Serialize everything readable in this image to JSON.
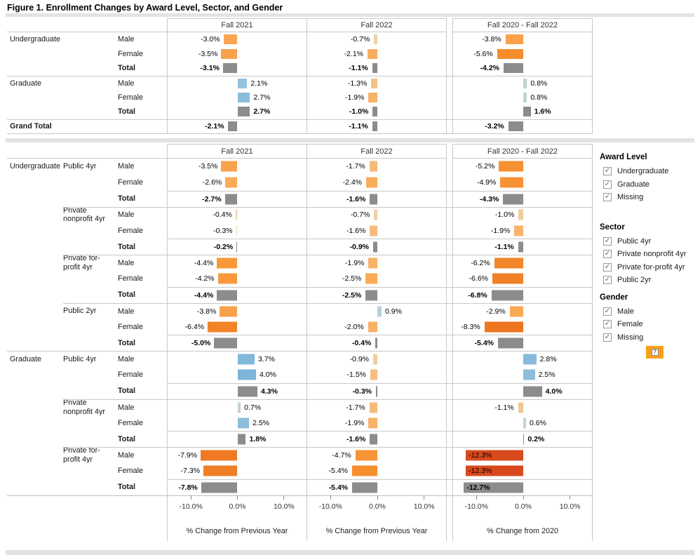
{
  "title": "Figure 1. Enrollment Changes by Award Level, Sector, and Gender",
  "palette": {
    "total_bar": "#8C8C8C",
    "negative_extreme": "#D8491D",
    "negative": "#F28E2B",
    "negative_light": "#EBD2A7",
    "positive": "#7CB5D8",
    "positive_light": "#C0D3D4",
    "separator_band": "#E3E3E3",
    "grid_border": "#C8C8C8",
    "filter_badge": "#F9A01B"
  },
  "chart_data": {
    "type": "bar",
    "orientation": "horizontal",
    "x_range": [
      -15,
      15
    ],
    "x_ticks": [
      {
        "value": -10,
        "label": "-10.0%"
      },
      {
        "value": 0,
        "label": "0.0%"
      },
      {
        "value": 10,
        "label": "10.0%"
      }
    ],
    "columns": [
      "Fall 2021",
      "Fall 2022",
      "Fall 2020 - Fall 2022"
    ],
    "x_axis_titles": [
      "% Change from Previous Year",
      "% Change from Previous Year",
      "% Change from 2020"
    ],
    "summary_rows": [
      {
        "level": "Undergraduate",
        "gender": "Male",
        "total": false,
        "cells": [
          {
            "v": -3.0,
            "label": "-3.0%",
            "color": "#F9A551"
          },
          {
            "v": -0.7,
            "label": "-0.7%",
            "color": "#EBD2A7"
          },
          {
            "v": -3.8,
            "label": "-3.8%",
            "color": "#F9A04A"
          }
        ]
      },
      {
        "level": "",
        "gender": "Female",
        "total": false,
        "cells": [
          {
            "v": -3.5,
            "label": "-3.5%",
            "color": "#F9A14C"
          },
          {
            "v": -2.1,
            "label": "-2.1%",
            "color": "#F8AE60"
          },
          {
            "v": -5.6,
            "label": "-5.6%",
            "color": "#F68D2B"
          }
        ]
      },
      {
        "level": "",
        "gender": "Total",
        "total": true,
        "cells": [
          {
            "v": -3.1,
            "label": "-3.1%",
            "color": "#8C8C8C"
          },
          {
            "v": -1.1,
            "label": "-1.1%",
            "color": "#8C8C8C"
          },
          {
            "v": -4.2,
            "label": "-4.2%",
            "color": "#8C8C8C"
          }
        ]
      },
      {
        "level": "Graduate",
        "gender": "Male",
        "total": false,
        "cells": [
          {
            "v": 2.1,
            "label": "2.1%",
            "color": "#95C2DD"
          },
          {
            "v": -1.3,
            "label": "-1.3%",
            "color": "#F2C289"
          },
          {
            "v": 0.8,
            "label": "0.8%",
            "color": "#C0D3D4"
          }
        ]
      },
      {
        "level": "",
        "gender": "Female",
        "total": false,
        "cells": [
          {
            "v": 2.7,
            "label": "2.7%",
            "color": "#8BBDDB"
          },
          {
            "v": -1.9,
            "label": "-1.9%",
            "color": "#F8B269"
          },
          {
            "v": 0.8,
            "label": "0.8%",
            "color": "#C0D3D4"
          }
        ]
      },
      {
        "level": "",
        "gender": "Total",
        "total": true,
        "cells": [
          {
            "v": 2.7,
            "label": "2.7%",
            "color": "#8C8C8C"
          },
          {
            "v": -1.0,
            "label": "-1.0%",
            "color": "#8C8C8C"
          },
          {
            "v": 1.6,
            "label": "1.6%",
            "color": "#8C8C8C"
          }
        ]
      },
      {
        "level": "Grand Total",
        "gender": "",
        "total": true,
        "cells": [
          {
            "v": -2.1,
            "label": "-2.1%",
            "color": "#8C8C8C"
          },
          {
            "v": -1.1,
            "label": "-1.1%",
            "color": "#8C8C8C"
          },
          {
            "v": -3.2,
            "label": "-3.2%",
            "color": "#8C8C8C"
          }
        ]
      }
    ],
    "detail_rows": [
      {
        "level": "Undergraduate",
        "sector": "Public 4yr",
        "gender": "Male",
        "total": false,
        "cells": [
          {
            "v": -3.5,
            "label": "-3.5%",
            "color": "#F9A14C"
          },
          {
            "v": -1.7,
            "label": "-1.7%",
            "color": "#F6BA78"
          },
          {
            "v": -5.2,
            "label": "-5.2%",
            "color": "#F79030"
          }
        ]
      },
      {
        "level": "",
        "sector": "",
        "gender": "Female",
        "total": false,
        "cells": [
          {
            "v": -2.6,
            "label": "-2.6%",
            "color": "#F9AB58"
          },
          {
            "v": -2.4,
            "label": "-2.4%",
            "color": "#F9AD5C"
          },
          {
            "v": -4.9,
            "label": "-4.9%",
            "color": "#F79334"
          }
        ]
      },
      {
        "level": "",
        "sector": "",
        "gender": "Total",
        "total": true,
        "cells": [
          {
            "v": -2.7,
            "label": "-2.7%",
            "color": "#8C8C8C"
          },
          {
            "v": -1.6,
            "label": "-1.6%",
            "color": "#8C8C8C"
          },
          {
            "v": -4.3,
            "label": "-4.3%",
            "color": "#8C8C8C"
          }
        ]
      },
      {
        "level": "",
        "sector": "Private nonprofit 4yr",
        "gender": "Male",
        "total": false,
        "cells": [
          {
            "v": -0.4,
            "label": "-0.4%",
            "color": "#E9D6B1"
          },
          {
            "v": -0.7,
            "label": "-0.7%",
            "color": "#EBD2A7"
          },
          {
            "v": -1.0,
            "label": "-1.0%",
            "color": "#ECCD9E"
          }
        ]
      },
      {
        "level": "",
        "sector": "",
        "gender": "Female",
        "total": false,
        "cells": [
          {
            "v": -0.3,
            "label": "-0.3%",
            "color": "#E9D8B6"
          },
          {
            "v": -1.6,
            "label": "-1.6%",
            "color": "#F6BB7B"
          },
          {
            "v": -1.9,
            "label": "-1.9%",
            "color": "#F8B269"
          }
        ]
      },
      {
        "level": "",
        "sector": "",
        "gender": "Total",
        "total": true,
        "cells": [
          {
            "v": -0.2,
            "label": "-0.2%",
            "color": "#8C8C8C"
          },
          {
            "v": -0.9,
            "label": "-0.9%",
            "color": "#8C8C8C"
          },
          {
            "v": -1.1,
            "label": "-1.1%",
            "color": "#8C8C8C"
          }
        ]
      },
      {
        "level": "",
        "sector": "Private for-profit 4yr",
        "gender": "Male",
        "total": false,
        "cells": [
          {
            "v": -4.4,
            "label": "-4.4%",
            "color": "#F89838"
          },
          {
            "v": -1.9,
            "label": "-1.9%",
            "color": "#F8B269"
          },
          {
            "v": -6.2,
            "label": "-6.2%",
            "color": "#F3862A"
          }
        ]
      },
      {
        "level": "",
        "sector": "",
        "gender": "Female",
        "total": false,
        "cells": [
          {
            "v": -4.2,
            "label": "-4.2%",
            "color": "#F89A3C"
          },
          {
            "v": -2.5,
            "label": "-2.5%",
            "color": "#F9AA56"
          },
          {
            "v": -6.6,
            "label": "-6.6%",
            "color": "#F18126"
          }
        ]
      },
      {
        "level": "",
        "sector": "",
        "gender": "Total",
        "total": true,
        "cells": [
          {
            "v": -4.4,
            "label": "-4.4%",
            "color": "#8C8C8C"
          },
          {
            "v": -2.5,
            "label": "-2.5%",
            "color": "#8C8C8C"
          },
          {
            "v": -6.8,
            "label": "-6.8%",
            "color": "#8C8C8C"
          }
        ]
      },
      {
        "level": "",
        "sector": "Public 2yr",
        "gender": "Male",
        "total": false,
        "cells": [
          {
            "v": -3.8,
            "label": "-3.8%",
            "color": "#F9A04A"
          },
          {
            "v": 0.9,
            "label": "0.9%",
            "color": "#B7D0D9"
          },
          {
            "v": -2.9,
            "label": "-2.9%",
            "color": "#F9A854"
          }
        ]
      },
      {
        "level": "",
        "sector": "",
        "gender": "Female",
        "total": false,
        "cells": [
          {
            "v": -6.4,
            "label": "-6.4%",
            "color": "#F28427"
          },
          {
            "v": -2.0,
            "label": "-2.0%",
            "color": "#F8B065"
          },
          {
            "v": -8.3,
            "label": "-8.3%",
            "color": "#EE751F"
          }
        ]
      },
      {
        "level": "",
        "sector": "",
        "gender": "Total",
        "total": true,
        "cells": [
          {
            "v": -5.0,
            "label": "-5.0%",
            "color": "#8C8C8C"
          },
          {
            "v": -0.4,
            "label": "-0.4%",
            "color": "#8C8C8C"
          },
          {
            "v": -5.4,
            "label": "-5.4%",
            "color": "#8C8C8C"
          }
        ]
      },
      {
        "level": "Graduate",
        "sector": "Public 4yr",
        "gender": "Male",
        "total": false,
        "cells": [
          {
            "v": 3.7,
            "label": "3.7%",
            "color": "#80B8D9"
          },
          {
            "v": -0.9,
            "label": "-0.9%",
            "color": "#ECCF9F"
          },
          {
            "v": 2.8,
            "label": "2.8%",
            "color": "#88BBDA"
          }
        ]
      },
      {
        "level": "",
        "sector": "",
        "gender": "Female",
        "total": false,
        "cells": [
          {
            "v": 4.0,
            "label": "4.0%",
            "color": "#7CB5D8"
          },
          {
            "v": -1.5,
            "label": "-1.5%",
            "color": "#F5BD82"
          },
          {
            "v": 2.5,
            "label": "2.5%",
            "color": "#8DBEDB"
          }
        ]
      },
      {
        "level": "",
        "sector": "",
        "gender": "Total",
        "total": true,
        "cells": [
          {
            "v": 4.3,
            "label": "4.3%",
            "color": "#8C8C8C"
          },
          {
            "v": -0.3,
            "label": "-0.3%",
            "color": "#8C8C8C"
          },
          {
            "v": 4.0,
            "label": "4.0%",
            "color": "#8C8C8C"
          }
        ]
      },
      {
        "level": "",
        "sector": "Private nonprofit 4yr",
        "gender": "Male",
        "total": false,
        "cells": [
          {
            "v": 0.7,
            "label": "0.7%",
            "color": "#C1D4D1"
          },
          {
            "v": -1.7,
            "label": "-1.7%",
            "color": "#F6BA78"
          },
          {
            "v": -1.1,
            "label": "-1.1%",
            "color": "#EFC895"
          }
        ]
      },
      {
        "level": "",
        "sector": "",
        "gender": "Female",
        "total": false,
        "cells": [
          {
            "v": 2.5,
            "label": "2.5%",
            "color": "#8DBEDB"
          },
          {
            "v": -1.9,
            "label": "-1.9%",
            "color": "#F8B269"
          },
          {
            "v": 0.6,
            "label": "0.6%",
            "color": "#C3D5CF"
          }
        ]
      },
      {
        "level": "",
        "sector": "",
        "gender": "Total",
        "total": true,
        "cells": [
          {
            "v": 1.8,
            "label": "1.8%",
            "color": "#8C8C8C"
          },
          {
            "v": -1.6,
            "label": "-1.6%",
            "color": "#8C8C8C"
          },
          {
            "v": 0.2,
            "label": "0.2%",
            "color": "#8C8C8C"
          }
        ]
      },
      {
        "level": "",
        "sector": "Private for-profit 4yr",
        "gender": "Male",
        "total": false,
        "cells": [
          {
            "v": -7.9,
            "label": "-7.9%",
            "color": "#EF7A22"
          },
          {
            "v": -4.7,
            "label": "-4.7%",
            "color": "#F79434"
          },
          {
            "v": -12.3,
            "label": "-12.3%",
            "color": "#D8491D"
          }
        ]
      },
      {
        "level": "",
        "sector": "",
        "gender": "Female",
        "total": false,
        "cells": [
          {
            "v": -7.3,
            "label": "-7.3%",
            "color": "#F07E25"
          },
          {
            "v": -5.4,
            "label": "-5.4%",
            "color": "#F68E2C"
          },
          {
            "v": -12.3,
            "label": "-12.3%",
            "color": "#D8491D"
          }
        ]
      },
      {
        "level": "",
        "sector": "",
        "gender": "Total",
        "total": true,
        "cells": [
          {
            "v": -7.8,
            "label": "-7.8%",
            "color": "#8C8C8C"
          },
          {
            "v": -5.4,
            "label": "-5.4%",
            "color": "#8C8C8C"
          },
          {
            "v": -12.7,
            "label": "-12.7%",
            "color": "#8C8C8C"
          }
        ]
      }
    ]
  },
  "filters": {
    "sections": [
      {
        "id": "award",
        "title": "Award Level",
        "items": [
          {
            "label": "Undergraduate",
            "checked": true
          },
          {
            "label": "Graduate",
            "checked": true
          },
          {
            "label": "Missing",
            "checked": true
          }
        ]
      },
      {
        "id": "sector",
        "title": "Sector",
        "items": [
          {
            "label": "Public 4yr",
            "checked": true
          },
          {
            "label": "Private nonprofit 4yr",
            "checked": true
          },
          {
            "label": "Private for-profit 4yr",
            "checked": true
          },
          {
            "label": "Public 2yr",
            "checked": true
          }
        ]
      },
      {
        "id": "gender",
        "title": "Gender",
        "items": [
          {
            "label": "Male",
            "checked": true
          },
          {
            "label": "Female",
            "checked": true
          },
          {
            "label": "Missing",
            "checked": true
          }
        ]
      }
    ],
    "check_glyph": "✓",
    "badge": {
      "glyph": "?",
      "color": "#F9A01B"
    }
  }
}
